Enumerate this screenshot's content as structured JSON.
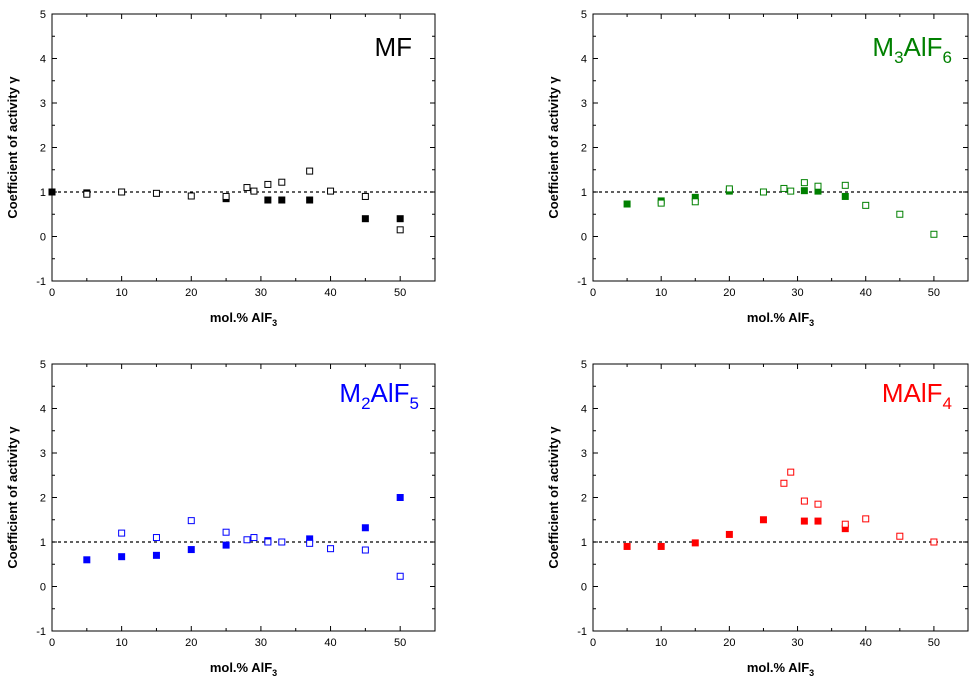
{
  "chart_data": [
    {
      "type": "scatter",
      "label_main": "MF",
      "label_sub": "",
      "label_tail": "",
      "color": "#000000",
      "xlabel_main": "mol.% AlF",
      "xlabel_sub": "3",
      "ylabel": "Coefficient of activity γ",
      "xlim": [
        0,
        55
      ],
      "ylim": [
        -1,
        5
      ],
      "xticks": [
        "0",
        "10",
        "20",
        "30",
        "40",
        "50"
      ],
      "yticks": [
        "-1",
        "0",
        "1",
        "2",
        "3",
        "4",
        "5"
      ],
      "reference_line": 1,
      "series": [
        {
          "marker": "filled-square",
          "points": [
            [
              0,
              1.0
            ],
            [
              5,
              0.98
            ],
            [
              25,
              0.85
            ],
            [
              31,
              0.82
            ],
            [
              33,
              0.82
            ],
            [
              37,
              0.82
            ],
            [
              45,
              0.4
            ],
            [
              50,
              0.4
            ]
          ]
        },
        {
          "marker": "open-square",
          "points": [
            [
              5,
              0.95
            ],
            [
              10,
              1.0
            ],
            [
              15,
              0.97
            ],
            [
              20,
              0.91
            ],
            [
              25,
              0.9
            ],
            [
              28,
              1.1
            ],
            [
              29,
              1.02
            ],
            [
              31,
              1.17
            ],
            [
              33,
              1.22
            ],
            [
              37,
              1.47
            ],
            [
              40,
              1.02
            ],
            [
              45,
              0.9
            ],
            [
              50,
              0.15
            ]
          ]
        }
      ]
    },
    {
      "type": "scatter",
      "label_main": "M",
      "label_sub": "3",
      "label_tail": "AlF",
      "label_sub2": "6",
      "color": "#008000",
      "xlabel_main": "mol.% AlF",
      "xlabel_sub": "3",
      "ylabel": "Coefficient of activity γ",
      "xlim": [
        0,
        55
      ],
      "ylim": [
        -1,
        5
      ],
      "xticks": [
        "0",
        "10",
        "20",
        "30",
        "40",
        "50"
      ],
      "yticks": [
        "-1",
        "0",
        "1",
        "2",
        "3",
        "4",
        "5"
      ],
      "reference_line": 1,
      "series": [
        {
          "marker": "filled-square",
          "points": [
            [
              5,
              0.73
            ],
            [
              10,
              0.8
            ],
            [
              15,
              0.88
            ],
            [
              20,
              1.02
            ],
            [
              31,
              1.03
            ],
            [
              33,
              1.02
            ],
            [
              37,
              0.9
            ]
          ]
        },
        {
          "marker": "open-square",
          "points": [
            [
              10,
              0.75
            ],
            [
              15,
              0.78
            ],
            [
              20,
              1.07
            ],
            [
              25,
              1.0
            ],
            [
              28,
              1.08
            ],
            [
              29,
              1.02
            ],
            [
              31,
              1.21
            ],
            [
              33,
              1.13
            ],
            [
              37,
              1.15
            ],
            [
              40,
              0.7
            ],
            [
              45,
              0.5
            ],
            [
              50,
              0.05
            ]
          ]
        }
      ]
    },
    {
      "type": "scatter",
      "label_main": "M",
      "label_sub": "2",
      "label_tail": "AlF",
      "label_sub2": "5",
      "color": "#0000ff",
      "xlabel_main": "mol.% AlF",
      "xlabel_sub": "3",
      "ylabel": "Coefficient of activity γ",
      "xlim": [
        0,
        55
      ],
      "ylim": [
        -1,
        5
      ],
      "xticks": [
        "0",
        "10",
        "20",
        "30",
        "40",
        "50"
      ],
      "yticks": [
        "-1",
        "0",
        "1",
        "2",
        "3",
        "4",
        "5"
      ],
      "reference_line": 1,
      "series": [
        {
          "marker": "filled-square",
          "points": [
            [
              5,
              0.6
            ],
            [
              10,
              0.67
            ],
            [
              15,
              0.7
            ],
            [
              20,
              0.83
            ],
            [
              25,
              0.93
            ],
            [
              31,
              1.03
            ],
            [
              37,
              1.07
            ],
            [
              45,
              1.32
            ],
            [
              50,
              2.0
            ]
          ]
        },
        {
          "marker": "open-square",
          "points": [
            [
              10,
              1.2
            ],
            [
              15,
              1.1
            ],
            [
              20,
              1.48
            ],
            [
              25,
              1.22
            ],
            [
              28,
              1.05
            ],
            [
              29,
              1.1
            ],
            [
              31,
              1.0
            ],
            [
              33,
              1.0
            ],
            [
              37,
              0.97
            ],
            [
              40,
              0.85
            ],
            [
              45,
              0.82
            ],
            [
              50,
              0.23
            ]
          ]
        }
      ]
    },
    {
      "type": "scatter",
      "label_main": "MAlF",
      "label_sub": "4",
      "label_tail": "",
      "color": "#ff0000",
      "xlabel_main": "mol.% AlF",
      "xlabel_sub": "3",
      "ylabel": "Coefficient of activity γ",
      "xlim": [
        0,
        55
      ],
      "ylim": [
        -1,
        5
      ],
      "xticks": [
        "0",
        "10",
        "20",
        "30",
        "40",
        "50"
      ],
      "yticks": [
        "-1",
        "0",
        "1",
        "2",
        "3",
        "4",
        "5"
      ],
      "reference_line": 1,
      "series": [
        {
          "marker": "filled-square",
          "points": [
            [
              5,
              0.9
            ],
            [
              10,
              0.9
            ],
            [
              15,
              0.98
            ],
            [
              20,
              1.17
            ],
            [
              25,
              1.5
            ],
            [
              31,
              1.47
            ],
            [
              33,
              1.47
            ],
            [
              37,
              1.3
            ]
          ]
        },
        {
          "marker": "open-square",
          "points": [
            [
              28,
              2.32
            ],
            [
              29,
              2.57
            ],
            [
              31,
              1.92
            ],
            [
              33,
              1.85
            ],
            [
              37,
              1.4
            ],
            [
              40,
              1.52
            ],
            [
              45,
              1.13
            ],
            [
              50,
              1.0
            ]
          ]
        }
      ]
    }
  ]
}
